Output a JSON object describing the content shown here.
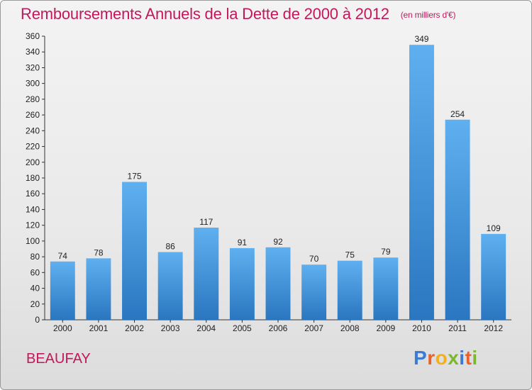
{
  "chart_data": {
    "type": "bar",
    "title": "Remboursements Annuels de la Dette de 2000 à 2012",
    "unit_label": "(en milliers d'€)",
    "categories": [
      "2000",
      "2001",
      "2002",
      "2003",
      "2004",
      "2005",
      "2006",
      "2007",
      "2008",
      "2009",
      "2010",
      "2011",
      "2012"
    ],
    "values": [
      74,
      78,
      175,
      86,
      117,
      91,
      92,
      70,
      75,
      79,
      349,
      254,
      109
    ],
    "ylim": [
      0,
      360
    ],
    "yticks": [
      0,
      20,
      40,
      60,
      80,
      100,
      120,
      140,
      160,
      180,
      200,
      220,
      240,
      260,
      280,
      300,
      320,
      340,
      360
    ],
    "grid": false,
    "bar_color": "#3a8fd8"
  },
  "footer": {
    "place": "BEAUFAY",
    "logo_letters": [
      "P",
      "r",
      "o",
      "x",
      "i",
      "t",
      "i"
    ],
    "logo_colors": [
      "#3a7bd5",
      "#e8622a",
      "#f2b01e",
      "#7cb82f",
      "#3a7bd5",
      "#e8622a",
      "#7cb82f"
    ]
  }
}
